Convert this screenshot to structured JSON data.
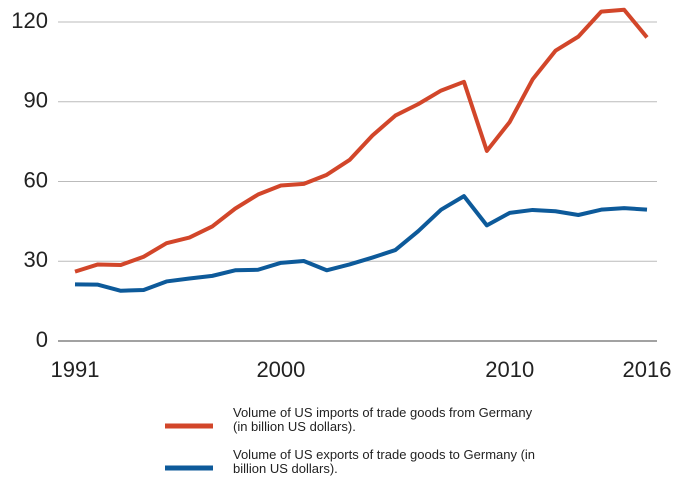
{
  "chart_data": {
    "type": "line",
    "x": [
      1991,
      1992,
      1993,
      1994,
      1995,
      1996,
      1997,
      1998,
      1999,
      2000,
      2001,
      2002,
      2003,
      2004,
      2005,
      2006,
      2007,
      2008,
      2009,
      2010,
      2011,
      2012,
      2013,
      2014,
      2015,
      2016
    ],
    "series": [
      {
        "name": "Volume of US imports of trade goods from Germany (in billion US dollars).",
        "color": "#d2462a",
        "values": [
          26.1,
          28.8,
          28.6,
          31.7,
          36.8,
          38.9,
          43.1,
          49.8,
          55.1,
          58.5,
          59.1,
          62.5,
          68.1,
          77.3,
          84.8,
          89.1,
          94.2,
          97.5,
          71.5,
          82.4,
          98.4,
          109.2,
          114.5,
          123.9,
          124.6,
          114.2
        ]
      },
      {
        "name": "Volume of US exports of trade goods to Germany (in billion US dollars).",
        "color": "#0d5a9a",
        "values": [
          21.3,
          21.2,
          18.9,
          19.2,
          22.4,
          23.5,
          24.5,
          26.6,
          26.8,
          29.4,
          30.1,
          26.6,
          28.8,
          31.4,
          34.2,
          41.3,
          49.4,
          54.5,
          43.5,
          48.2,
          49.3,
          48.8,
          47.4,
          49.4,
          50.0,
          49.4
        ]
      }
    ],
    "xlim": [
      1991,
      2016
    ],
    "xticks": [
      1991,
      2000,
      2010,
      2016
    ],
    "ylim": [
      0,
      120
    ],
    "yticks": [
      0,
      30,
      60,
      90,
      120
    ],
    "grid": true
  }
}
